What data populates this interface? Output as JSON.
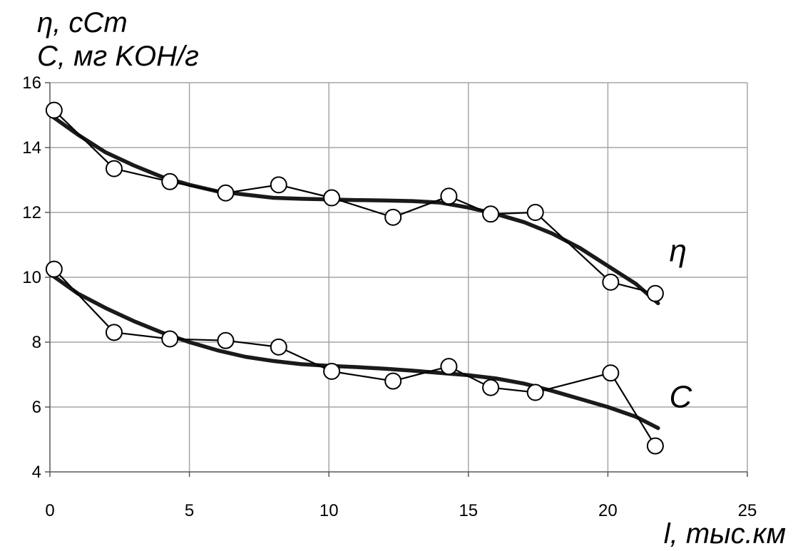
{
  "chart_data": {
    "type": "line",
    "ylabel_lines": [
      "η, cCm",
      "C, мг KOH/г"
    ],
    "xlabel": "l, тыс.км",
    "xlim": [
      0,
      25
    ],
    "ylim": [
      4,
      16
    ],
    "x_ticks": [
      "0",
      "5",
      "10",
      "15",
      "20",
      "25"
    ],
    "y_ticks": [
      "4",
      "6",
      "8",
      "10",
      "12",
      "14",
      "16"
    ],
    "grid": true,
    "series": [
      {
        "name": "η",
        "label_x": 22.2,
        "label_y": 10.8,
        "points": [
          [
            0.15,
            15.15
          ],
          [
            2.3,
            13.35
          ],
          [
            4.3,
            12.95
          ],
          [
            6.3,
            12.6
          ],
          [
            8.2,
            12.85
          ],
          [
            10.1,
            12.45
          ],
          [
            12.3,
            11.85
          ],
          [
            14.3,
            12.5
          ],
          [
            15.8,
            11.95
          ],
          [
            17.4,
            12.0
          ],
          [
            20.1,
            9.85
          ],
          [
            21.7,
            9.5
          ]
        ],
        "trend": [
          [
            0.1,
            14.95
          ],
          [
            1,
            14.4
          ],
          [
            2,
            13.85
          ],
          [
            3,
            13.45
          ],
          [
            4,
            13.1
          ],
          [
            5,
            12.85
          ],
          [
            6,
            12.65
          ],
          [
            7,
            12.55
          ],
          [
            8,
            12.45
          ],
          [
            9,
            12.42
          ],
          [
            10,
            12.4
          ],
          [
            11,
            12.38
          ],
          [
            12,
            12.37
          ],
          [
            13,
            12.35
          ],
          [
            14,
            12.3
          ],
          [
            15,
            12.15
          ],
          [
            16,
            11.95
          ],
          [
            17,
            11.7
          ],
          [
            18,
            11.35
          ],
          [
            19,
            10.9
          ],
          [
            20,
            10.35
          ],
          [
            21,
            9.8
          ],
          [
            21.8,
            9.2
          ]
        ]
      },
      {
        "name": "C",
        "label_x": 22.2,
        "label_y": 6.3,
        "points": [
          [
            0.15,
            10.25
          ],
          [
            2.3,
            8.3
          ],
          [
            4.3,
            8.1
          ],
          [
            6.3,
            8.05
          ],
          [
            8.2,
            7.85
          ],
          [
            10.1,
            7.1
          ],
          [
            12.3,
            6.8
          ],
          [
            14.3,
            7.25
          ],
          [
            15.8,
            6.6
          ],
          [
            17.4,
            6.45
          ],
          [
            20.1,
            7.05
          ],
          [
            21.7,
            4.8
          ]
        ],
        "trend": [
          [
            0.1,
            10.05
          ],
          [
            1,
            9.5
          ],
          [
            2,
            9.05
          ],
          [
            3,
            8.65
          ],
          [
            4,
            8.3
          ],
          [
            5,
            8.0
          ],
          [
            6,
            7.75
          ],
          [
            7,
            7.55
          ],
          [
            8,
            7.42
          ],
          [
            9,
            7.32
          ],
          [
            10,
            7.27
          ],
          [
            11,
            7.23
          ],
          [
            12,
            7.18
          ],
          [
            13,
            7.12
          ],
          [
            14,
            7.05
          ],
          [
            15,
            6.98
          ],
          [
            16,
            6.88
          ],
          [
            17,
            6.72
          ],
          [
            18,
            6.5
          ],
          [
            19,
            6.25
          ],
          [
            20,
            6.0
          ],
          [
            21,
            5.7
          ],
          [
            21.8,
            5.35
          ]
        ]
      }
    ]
  }
}
